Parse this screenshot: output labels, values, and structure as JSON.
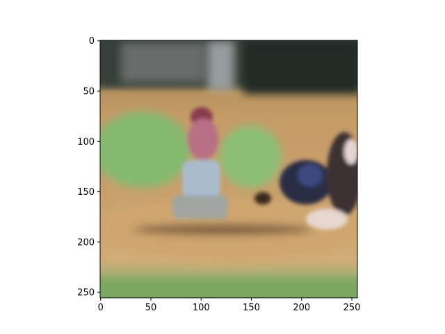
{
  "figure": {
    "image_description": "blurred reconstruction of a baseball scene: batter in red-and-white uniform standing on a dirt infield, crouching catcher at right, green outfield grass, dark crowd/stands at top",
    "colors": {
      "crowd": "#2f3a33",
      "dirt": "#c8a06a",
      "grass": "#7fb36a",
      "batter_jersey": "#b06a7a",
      "batter_pants": "#9bb0c8",
      "catcher": "#2c3550",
      "axes_frame": "#000000"
    }
  },
  "chart_data": {
    "type": "image",
    "x_ticks": [
      0,
      50,
      100,
      150,
      200,
      250
    ],
    "y_ticks": [
      0,
      50,
      100,
      150,
      200,
      250
    ],
    "xlim": [
      -0.5,
      255.5
    ],
    "ylim": [
      255.5,
      -0.5
    ],
    "x_tick_labels": [
      "0",
      "50",
      "100",
      "150",
      "200",
      "250"
    ],
    "y_tick_labels": [
      "0",
      "50",
      "100",
      "150",
      "200",
      "250"
    ]
  }
}
